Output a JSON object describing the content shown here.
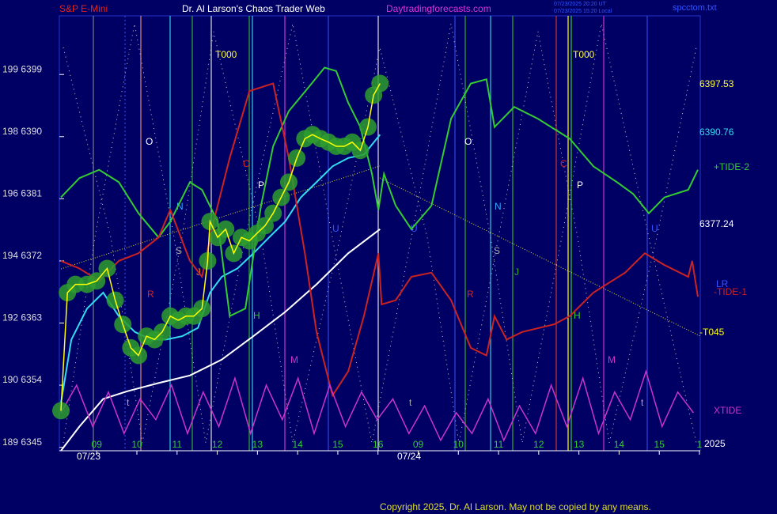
{
  "header": {
    "left": "S&P E-Mini",
    "center": "Dr. Al Larson's Chaos Trader Web",
    "site": "Daytradingforecasts.com",
    "file": "spcctom.txt",
    "stamp1": "07/23/2025 20:20 UT",
    "stamp2": "07/23/2025 15:20 Local"
  },
  "footer": "Copyright 2025, Dr. Al Larson. May not be copied by any means.",
  "chart_data": {
    "type": "line",
    "xlim": [
      0.07,
      16.02
    ],
    "ylim": [
      6344.5,
      6407.5
    ],
    "xticks": [
      {
        "value": 1,
        "label": "09"
      },
      {
        "value": 2,
        "label": "10"
      },
      {
        "value": 3,
        "label": "11"
      },
      {
        "value": 4,
        "label": "12"
      },
      {
        "value": 5,
        "label": "13"
      },
      {
        "value": 6,
        "label": "14"
      },
      {
        "value": 7,
        "label": "15"
      },
      {
        "value": 8,
        "label": "16"
      },
      {
        "value": 9,
        "label": "09"
      },
      {
        "value": 10,
        "label": "10"
      },
      {
        "value": 11,
        "label": "11"
      },
      {
        "value": 12,
        "label": "12"
      },
      {
        "value": 13,
        "label": "13"
      },
      {
        "value": 14,
        "label": "14"
      },
      {
        "value": 15,
        "label": "15"
      },
      {
        "value": 16,
        "label": "1"
      }
    ],
    "yticks": [
      {
        "value": 6345,
        "label": "189 6345"
      },
      {
        "value": 6354,
        "label": "190 6354"
      },
      {
        "value": 6363,
        "label": "192 6363"
      },
      {
        "value": 6372,
        "label": "194 6372"
      },
      {
        "value": 6381,
        "label": "196 6381"
      },
      {
        "value": 6390,
        "label": "198 6390"
      },
      {
        "value": 6399,
        "label": "199 6399"
      }
    ],
    "dates": [
      "07/23",
      "07/24"
    ],
    "right_labels": [
      "6397.53",
      "6390.76",
      "6377.24",
      "LR",
      "-T045",
      "2025"
    ],
    "letters": [
      "T000",
      "T000",
      "O",
      "O",
      "N",
      "N",
      "P",
      "P",
      "C",
      "C",
      "S",
      "S",
      "R",
      "R",
      "H",
      "H",
      "M",
      "M",
      "U",
      "U",
      "U",
      "J",
      "J",
      "t",
      "t",
      "t"
    ],
    "series": [
      {
        "color": "#33ddee",
        "x": [
          0.11,
          0.37,
          0.76,
          1.16,
          1.55,
          1.95,
          2.34,
          2.73,
          3.13,
          3.52,
          3.82,
          4.11,
          4.5,
          4.9,
          5.29,
          5.69,
          6.08,
          6.47,
          6.87,
          7.26,
          7.65,
          8.05
        ],
        "values": [
          6351.4,
          6360.6,
          6365.1,
          6367.4,
          6364.0,
          6361.7,
          6360.6,
          6360.6,
          6361.1,
          6362.3,
          6367.4,
          6369.7,
          6370.9,
          6373.1,
          6375.4,
          6377.7,
          6381.2,
          6383.4,
          6385.7,
          6386.9,
          6387.4,
          6390.3
        ]
      },
      {
        "color": "#ffffff",
        "x": [
          0.11,
          0.57,
          1.16,
          1.75,
          2.54,
          3.32,
          4.11,
          4.9,
          5.69,
          6.47,
          7.26,
          8.05
        ],
        "values": [
          6344.5,
          6348.0,
          6352.0,
          6353.1,
          6354.3,
          6355.4,
          6357.7,
          6361.1,
          6364.6,
          6368.6,
          6373.1,
          6376.6
        ]
      },
      {
        "name": "+TIDE-2",
        "color": "#33cc33",
        "x": [
          0.11,
          0.57,
          1.06,
          1.55,
          2.04,
          2.54,
          2.83,
          3.32,
          3.62,
          4.01,
          4.31,
          4.7,
          5.09,
          5.39,
          5.78,
          6.28,
          6.67,
          6.96,
          7.26,
          7.56,
          7.85,
          8.01,
          8.15,
          8.44,
          8.83,
          9.33,
          9.82,
          10.31,
          10.7,
          10.9,
          11.39,
          11.98,
          12.77,
          13.36,
          13.95,
          14.35,
          14.74,
          15.13,
          15.72,
          15.96
        ],
        "values": [
          6381.2,
          6384.0,
          6385.2,
          6383.4,
          6378.9,
          6375.4,
          6377.7,
          6383.4,
          6382.3,
          6377.7,
          6364.0,
          6365.1,
          6380.0,
          6388.6,
          6393.7,
          6397.2,
          6400.0,
          6399.5,
          6394.9,
          6391.4,
          6384.6,
          6379.4,
          6384.6,
          6380.0,
          6376.6,
          6380.0,
          6392.6,
          6397.7,
          6398.3,
          6391.4,
          6394.3,
          6392.6,
          6389.7,
          6385.7,
          6383.4,
          6381.7,
          6378.9,
          6381.2,
          6382.3,
          6385.2
        ]
      },
      {
        "name": "-TIDE-1",
        "color": "#cc2222",
        "x": [
          0.11,
          0.57,
          1.06,
          1.55,
          2.04,
          2.54,
          2.83,
          3.32,
          3.62,
          3.91,
          4.31,
          4.8,
          5.39,
          5.78,
          6.18,
          6.47,
          6.87,
          7.26,
          7.65,
          8.01,
          8.09,
          8.44,
          8.83,
          9.33,
          9.82,
          10.31,
          10.7,
          10.9,
          11.2,
          11.59,
          12.38,
          12.77,
          13.36,
          14.15,
          14.64,
          15.13,
          15.72,
          15.82,
          15.96
        ],
        "values": [
          6372.0,
          6370.9,
          6369.1,
          6372.0,
          6373.1,
          6375.4,
          6379.4,
          6372.0,
          6369.7,
          6377.7,
          6386.9,
          6396.6,
          6397.7,
          6386.9,
          6373.1,
          6361.7,
          6352.5,
          6356.0,
          6364.0,
          6373.1,
          6365.7,
          6366.3,
          6369.7,
          6370.3,
          6366.3,
          6359.4,
          6358.3,
          6364.0,
          6360.6,
          6361.7,
          6362.8,
          6364.0,
          6367.4,
          6370.3,
          6373.1,
          6371.4,
          6369.7,
          6372.0,
          6366.8
        ]
      },
      {
        "name": "XTIDE",
        "color": "#cc33cc",
        "x": [
          0.11,
          0.5,
          0.9,
          1.29,
          1.68,
          2.08,
          2.47,
          2.86,
          3.26,
          3.65,
          4.04,
          4.44,
          4.83,
          5.22,
          5.62,
          6.01,
          6.41,
          6.8,
          7.19,
          7.59,
          7.98,
          8.37,
          8.77,
          9.16,
          9.56,
          9.95,
          10.34,
          10.74,
          11.13,
          11.52,
          11.92,
          12.31,
          12.7,
          13.1,
          13.49,
          13.89,
          14.28,
          14.67,
          15.07,
          15.46,
          15.85
        ],
        "values": [
          6350,
          6354,
          6348,
          6353,
          6347,
          6352,
          6349,
          6354,
          6347,
          6353,
          6348,
          6355,
          6347,
          6354,
          6349,
          6355,
          6347,
          6354,
          6348,
          6353,
          6349,
          6352,
          6347,
          6351,
          6346,
          6350,
          6347,
          6352,
          6346,
          6351,
          6347,
          6354,
          6348,
          6355,
          6347,
          6353,
          6349,
          6356,
          6348,
          6353,
          6350
        ]
      },
      {
        "color": "#ffff00",
        "x": [
          0.11,
          0.27,
          0.47,
          0.76,
          1.0,
          1.26,
          1.46,
          1.65,
          1.85,
          2.04,
          2.24,
          2.44,
          2.63,
          2.83,
          3.03,
          3.22,
          3.42,
          3.62,
          3.76,
          3.82,
          4.01,
          4.21,
          4.41,
          4.6,
          4.8,
          4.99,
          5.19,
          5.39,
          5.59,
          5.78,
          5.98,
          6.18,
          6.37,
          6.57,
          6.77,
          6.96,
          7.16,
          7.36,
          7.56,
          7.75,
          7.89,
          8.05
        ],
        "values": [
          6350.3,
          6367.4,
          6368.6,
          6368.6,
          6369.1,
          6370.9,
          6366.3,
          6362.8,
          6359.4,
          6358.3,
          6361.1,
          6360.6,
          6361.7,
          6364.0,
          6363.4,
          6364.0,
          6364.0,
          6365.1,
          6372.0,
          6377.7,
          6375.4,
          6376.6,
          6373.1,
          6375.4,
          6374.9,
          6376.0,
          6377.1,
          6378.9,
          6381.2,
          6383.4,
          6386.9,
          6389.7,
          6390.3,
          6389.7,
          6389.2,
          6388.6,
          6388.6,
          6389.2,
          6388.0,
          6391.4,
          6396.0,
          6397.7
        ]
      }
    ]
  }
}
